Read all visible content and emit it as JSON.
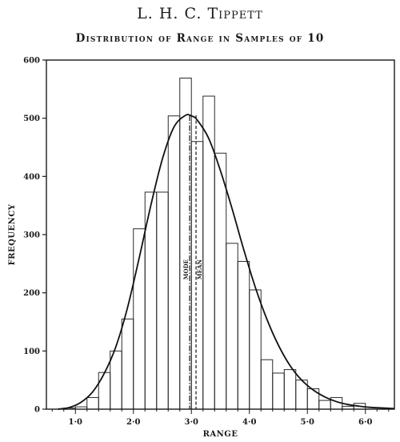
{
  "header": "L. H. C. Tippett",
  "chart_data": {
    "type": "bar",
    "title": "Distribution of Range in Samples of 10",
    "xlabel": "RANGE",
    "ylabel": "FREQUENCY",
    "xlim": [
      0.5,
      6.5
    ],
    "ylim": [
      0,
      600
    ],
    "x_ticks": [
      1.0,
      2.0,
      3.0,
      4.0,
      5.0,
      6.0
    ],
    "x_tick_labels": [
      "1·0",
      "2·0",
      "3·0",
      "4·0",
      "5·0",
      "6·0"
    ],
    "y_ticks": [
      0,
      100,
      200,
      300,
      400,
      500,
      600
    ],
    "y_tick_labels": [
      "0",
      "100",
      "200",
      "300",
      "400",
      "500",
      "600"
    ],
    "bin_width": 0.2,
    "bin_starts": [
      0.8,
      1.0,
      1.2,
      1.4,
      1.6,
      1.8,
      2.0,
      2.2,
      2.4,
      2.6,
      2.8,
      3.0,
      3.2,
      3.4,
      3.6,
      3.8,
      4.0,
      4.2,
      4.4,
      4.6,
      4.8,
      5.0,
      5.2,
      5.4,
      5.6,
      5.8,
      6.0
    ],
    "frequencies": [
      2,
      4,
      20,
      63,
      100,
      155,
      310,
      373,
      373,
      504,
      569,
      460,
      538,
      440,
      285,
      254,
      205,
      85,
      62,
      68,
      50,
      35,
      15,
      20,
      5,
      10,
      0
    ],
    "curve": {
      "x": [
        0.7,
        0.9,
        1.1,
        1.3,
        1.5,
        1.7,
        1.9,
        2.1,
        2.3,
        2.5,
        2.7,
        2.9,
        3.0,
        3.1,
        3.3,
        3.5,
        3.7,
        3.9,
        4.1,
        4.3,
        4.5,
        4.7,
        4.9,
        5.1,
        5.3,
        5.5,
        5.7,
        5.9,
        6.1,
        6.3,
        6.5
      ],
      "y": [
        0,
        3,
        12,
        30,
        62,
        108,
        175,
        260,
        350,
        430,
        485,
        505,
        504,
        497,
        465,
        410,
        345,
        275,
        210,
        155,
        110,
        75,
        50,
        33,
        21,
        13,
        8,
        5,
        3,
        2,
        1
      ]
    },
    "mode": {
      "x": 2.97,
      "label": "MODE"
    },
    "mean": {
      "x": 3.08,
      "label": "MEAN"
    },
    "grid": false,
    "legend": "none"
  }
}
